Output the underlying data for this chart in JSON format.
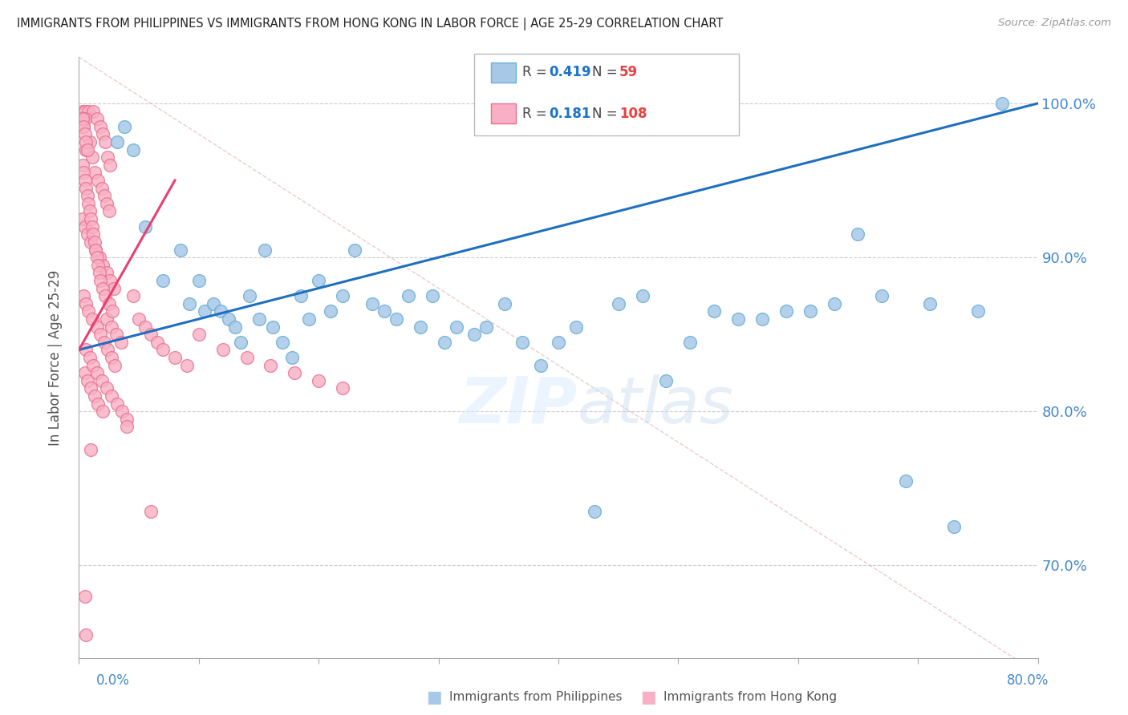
{
  "title": "IMMIGRANTS FROM PHILIPPINES VS IMMIGRANTS FROM HONG KONG IN LABOR FORCE | AGE 25-29 CORRELATION CHART",
  "source": "Source: ZipAtlas.com",
  "ylabel": "In Labor Force | Age 25-29",
  "xlim": [
    0.0,
    80.0
  ],
  "ylim": [
    64.0,
    103.0
  ],
  "yticks": [
    70.0,
    80.0,
    90.0,
    100.0
  ],
  "right_ytick_labels": [
    "70.0%",
    "80.0%",
    "90.0%",
    "100.0%"
  ],
  "blue_R": 0.419,
  "blue_N": 59,
  "pink_R": 0.181,
  "pink_N": 108,
  "blue_color": "#a8c8e8",
  "blue_edge_color": "#6aaed6",
  "blue_line_color": "#1f6fbf",
  "pink_color": "#f9b0c4",
  "pink_edge_color": "#e87090",
  "pink_line_color": "#e84070",
  "legend_R_color": "#1a72cc",
  "legend_N_color": "#e84040",
  "axis_label_color": "#4488cc",
  "background_color": "#ffffff",
  "watermark": "ZIPatlas",
  "blue_x": [
    3.2,
    3.8,
    4.5,
    5.5,
    7.0,
    8.5,
    9.2,
    10.0,
    10.5,
    11.2,
    11.8,
    12.5,
    13.0,
    13.5,
    14.2,
    15.0,
    15.5,
    16.2,
    17.0,
    17.8,
    18.5,
    19.2,
    20.0,
    21.0,
    22.0,
    23.0,
    24.5,
    25.5,
    26.5,
    27.5,
    28.5,
    29.5,
    30.5,
    31.5,
    33.0,
    34.0,
    35.5,
    37.0,
    38.5,
    40.0,
    41.5,
    43.0,
    45.0,
    47.0,
    49.0,
    51.0,
    53.0,
    55.0,
    57.0,
    59.0,
    61.0,
    63.0,
    65.0,
    67.0,
    69.0,
    71.0,
    73.0,
    75.0,
    77.0
  ],
  "blue_y": [
    97.5,
    98.5,
    97.0,
    92.0,
    88.5,
    90.5,
    87.0,
    88.5,
    86.5,
    87.0,
    86.5,
    86.0,
    85.5,
    84.5,
    87.5,
    86.0,
    90.5,
    85.5,
    84.5,
    83.5,
    87.5,
    86.0,
    88.5,
    86.5,
    87.5,
    90.5,
    87.0,
    86.5,
    86.0,
    87.5,
    85.5,
    87.5,
    84.5,
    85.5,
    85.0,
    85.5,
    87.0,
    84.5,
    83.0,
    84.5,
    85.5,
    73.5,
    87.0,
    87.5,
    82.0,
    84.5,
    86.5,
    86.0,
    86.0,
    86.5,
    86.5,
    87.0,
    91.5,
    87.5,
    75.5,
    87.0,
    72.5,
    86.5,
    100.0
  ],
  "pink_x": [
    0.3,
    0.5,
    0.8,
    1.2,
    1.5,
    1.8,
    2.0,
    2.2,
    2.4,
    2.6,
    0.4,
    0.6,
    0.9,
    1.1,
    1.3,
    1.6,
    1.9,
    2.1,
    2.3,
    2.5,
    0.3,
    0.5,
    0.7,
    1.0,
    1.4,
    1.7,
    2.0,
    2.3,
    2.6,
    2.9,
    0.4,
    0.6,
    0.8,
    1.1,
    1.5,
    1.8,
    2.1,
    2.4,
    2.7,
    3.0,
    0.5,
    0.7,
    1.0,
    1.3,
    1.6,
    2.0,
    2.3,
    2.7,
    3.1,
    3.5,
    0.6,
    0.9,
    1.2,
    1.5,
    1.9,
    2.3,
    2.7,
    3.2,
    3.6,
    4.0,
    4.5,
    5.0,
    5.5,
    6.0,
    6.5,
    7.0,
    8.0,
    9.0,
    10.0,
    12.0,
    14.0,
    16.0,
    18.0,
    20.0,
    22.0,
    0.3,
    0.4,
    0.5,
    0.3,
    0.4,
    0.5,
    0.6,
    0.7,
    0.8,
    0.9,
    1.0,
    1.1,
    1.2,
    1.3,
    1.4,
    1.5,
    1.6,
    1.7,
    1.8,
    2.0,
    2.2,
    2.5,
    2.8,
    1.0,
    0.5,
    0.6,
    4.0,
    6.0,
    0.3,
    0.4,
    0.5,
    0.6,
    0.7
  ],
  "pink_y": [
    99.5,
    99.5,
    99.5,
    99.5,
    99.0,
    98.5,
    98.0,
    97.5,
    96.5,
    96.0,
    98.5,
    97.0,
    97.5,
    96.5,
    95.5,
    95.0,
    94.5,
    94.0,
    93.5,
    93.0,
    92.5,
    92.0,
    91.5,
    91.0,
    90.5,
    90.0,
    89.5,
    89.0,
    88.5,
    88.0,
    87.5,
    87.0,
    86.5,
    86.0,
    85.5,
    85.0,
    84.5,
    84.0,
    83.5,
    83.0,
    82.5,
    82.0,
    81.5,
    81.0,
    80.5,
    80.0,
    86.0,
    85.5,
    85.0,
    84.5,
    84.0,
    83.5,
    83.0,
    82.5,
    82.0,
    81.5,
    81.0,
    80.5,
    80.0,
    79.5,
    87.5,
    86.0,
    85.5,
    85.0,
    84.5,
    84.0,
    83.5,
    83.0,
    85.0,
    84.0,
    83.5,
    83.0,
    82.5,
    82.0,
    81.5,
    99.0,
    99.0,
    99.0,
    96.0,
    95.5,
    95.0,
    94.5,
    94.0,
    93.5,
    93.0,
    92.5,
    92.0,
    91.5,
    91.0,
    90.5,
    90.0,
    89.5,
    89.0,
    88.5,
    88.0,
    87.5,
    87.0,
    86.5,
    77.5,
    68.0,
    65.5,
    79.0,
    73.5,
    99.0,
    98.5,
    98.0,
    97.5,
    97.0
  ]
}
